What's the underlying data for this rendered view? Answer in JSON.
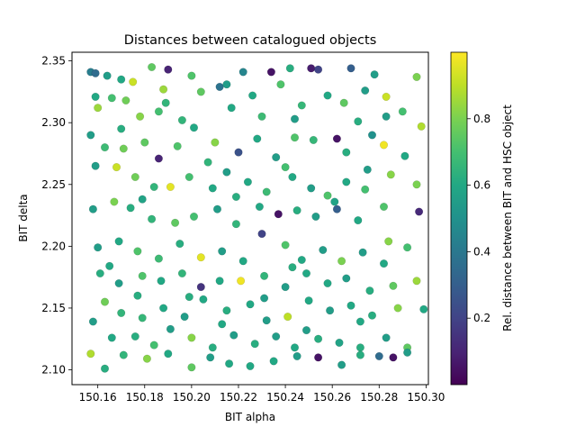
{
  "chart_data": {
    "type": "scatter",
    "title": "Distances between catalogued objects",
    "xlabel": "BIT alpha",
    "ylabel": "BIT delta",
    "xlim": [
      150.149,
      150.301
    ],
    "ylim": [
      2.088,
      2.357
    ],
    "xticks": [
      150.16,
      150.18,
      150.2,
      150.22,
      150.24,
      150.26,
      150.28,
      150.3
    ],
    "xtick_labels": [
      "150.16",
      "150.18",
      "150.20",
      "150.22",
      "150.24",
      "150.26",
      "150.28",
      "150.30"
    ],
    "yticks": [
      2.1,
      2.15,
      2.2,
      2.25,
      2.3,
      2.35
    ],
    "ytick_labels": [
      "2.10",
      "2.15",
      "2.20",
      "2.25",
      "2.30",
      "2.35"
    ],
    "grid": false,
    "colorbar": {
      "label": "Rel. distance between BIT and HSC object",
      "colormap": "viridis",
      "range": [
        0.0,
        1.0
      ],
      "ticks": [
        0.2,
        0.4,
        0.6,
        0.8
      ],
      "tick_labels": [
        "0.2",
        "0.4",
        "0.6",
        "0.8"
      ]
    },
    "points": [
      [
        150.157,
        2.341,
        0.42
      ],
      [
        150.159,
        2.34,
        0.35
      ],
      [
        150.164,
        2.338,
        0.55
      ],
      [
        150.17,
        2.335,
        0.6
      ],
      [
        150.175,
        2.333,
        0.92
      ],
      [
        150.183,
        2.345,
        0.75
      ],
      [
        150.19,
        2.343,
        0.1
      ],
      [
        150.188,
        2.327,
        0.85
      ],
      [
        150.2,
        2.338,
        0.72
      ],
      [
        150.212,
        2.329,
        0.38
      ],
      [
        150.222,
        2.341,
        0.45
      ],
      [
        150.234,
        2.341,
        0.05
      ],
      [
        150.242,
        2.344,
        0.62
      ],
      [
        150.251,
        2.344,
        0.08
      ],
      [
        150.254,
        2.343,
        0.2
      ],
      [
        150.268,
        2.344,
        0.3
      ],
      [
        150.278,
        2.339,
        0.55
      ],
      [
        150.296,
        2.337,
        0.8
      ],
      [
        150.16,
        2.312,
        0.85
      ],
      [
        150.166,
        2.32,
        0.7
      ],
      [
        150.172,
        2.318,
        0.78
      ],
      [
        150.178,
        2.305,
        0.82
      ],
      [
        150.186,
        2.309,
        0.7
      ],
      [
        150.196,
        2.302,
        0.65
      ],
      [
        150.204,
        2.325,
        0.75
      ],
      [
        150.215,
        2.331,
        0.55
      ],
      [
        150.226,
        2.322,
        0.6
      ],
      [
        150.23,
        2.305,
        0.68
      ],
      [
        150.238,
        2.331,
        0.72
      ],
      [
        150.247,
        2.314,
        0.66
      ],
      [
        150.258,
        2.322,
        0.6
      ],
      [
        150.265,
        2.316,
        0.75
      ],
      [
        150.274,
        2.326,
        0.55
      ],
      [
        150.283,
        2.321,
        0.92
      ],
      [
        150.29,
        2.309,
        0.7
      ],
      [
        150.298,
        2.297,
        0.88
      ],
      [
        150.157,
        2.29,
        0.55
      ],
      [
        150.163,
        2.28,
        0.68
      ],
      [
        150.171,
        2.279,
        0.78
      ],
      [
        150.18,
        2.284,
        0.75
      ],
      [
        150.186,
        2.271,
        0.1
      ],
      [
        150.194,
        2.281,
        0.72
      ],
      [
        150.201,
        2.296,
        0.6
      ],
      [
        150.21,
        2.284,
        0.82
      ],
      [
        150.22,
        2.276,
        0.25
      ],
      [
        150.228,
        2.287,
        0.6
      ],
      [
        150.236,
        2.272,
        0.55
      ],
      [
        150.244,
        2.288,
        0.72
      ],
      [
        150.252,
        2.286,
        0.66
      ],
      [
        150.262,
        2.287,
        0.05
      ],
      [
        150.266,
        2.276,
        0.62
      ],
      [
        150.277,
        2.29,
        0.5
      ],
      [
        150.282,
        2.282,
        0.98
      ],
      [
        150.291,
        2.273,
        0.6
      ],
      [
        150.159,
        2.265,
        0.55
      ],
      [
        150.168,
        2.264,
        0.92
      ],
      [
        150.176,
        2.256,
        0.78
      ],
      [
        150.184,
        2.248,
        0.65
      ],
      [
        150.191,
        2.248,
        0.96
      ],
      [
        150.199,
        2.256,
        0.7
      ],
      [
        150.209,
        2.247,
        0.6
      ],
      [
        150.215,
        2.26,
        0.55
      ],
      [
        150.224,
        2.252,
        0.6
      ],
      [
        150.232,
        2.244,
        0.68
      ],
      [
        150.243,
        2.256,
        0.6
      ],
      [
        150.251,
        2.247,
        0.55
      ],
      [
        150.258,
        2.241,
        0.72
      ],
      [
        150.266,
        2.252,
        0.6
      ],
      [
        150.274,
        2.246,
        0.7
      ],
      [
        150.285,
        2.258,
        0.82
      ],
      [
        150.296,
        2.25,
        0.8
      ],
      [
        150.158,
        2.23,
        0.55
      ],
      [
        150.167,
        2.236,
        0.8
      ],
      [
        150.174,
        2.231,
        0.62
      ],
      [
        150.183,
        2.222,
        0.65
      ],
      [
        150.193,
        2.219,
        0.75
      ],
      [
        150.201,
        2.224,
        0.7
      ],
      [
        150.211,
        2.23,
        0.55
      ],
      [
        150.219,
        2.218,
        0.65
      ],
      [
        150.229,
        2.232,
        0.6
      ],
      [
        150.237,
        2.226,
        0.05
      ],
      [
        150.245,
        2.229,
        0.62
      ],
      [
        150.253,
        2.224,
        0.55
      ],
      [
        150.262,
        2.23,
        0.3
      ],
      [
        150.271,
        2.221,
        0.6
      ],
      [
        150.282,
        2.232,
        0.72
      ],
      [
        150.297,
        2.228,
        0.12
      ],
      [
        150.16,
        2.199,
        0.55
      ],
      [
        150.169,
        2.204,
        0.6
      ],
      [
        150.177,
        2.196,
        0.72
      ],
      [
        150.186,
        2.19,
        0.68
      ],
      [
        150.195,
        2.202,
        0.62
      ],
      [
        150.204,
        2.191,
        0.96
      ],
      [
        150.213,
        2.196,
        0.55
      ],
      [
        150.222,
        2.188,
        0.6
      ],
      [
        150.23,
        2.21,
        0.2
      ],
      [
        150.24,
        2.201,
        0.72
      ],
      [
        150.247,
        2.189,
        0.6
      ],
      [
        150.256,
        2.197,
        0.55
      ],
      [
        150.264,
        2.188,
        0.8
      ],
      [
        150.273,
        2.195,
        0.55
      ],
      [
        150.284,
        2.204,
        0.82
      ],
      [
        150.292,
        2.199,
        0.7
      ],
      [
        150.161,
        2.178,
        0.62
      ],
      [
        150.169,
        2.17,
        0.55
      ],
      [
        150.179,
        2.176,
        0.72
      ],
      [
        150.187,
        2.172,
        0.6
      ],
      [
        150.196,
        2.178,
        0.65
      ],
      [
        150.204,
        2.167,
        0.15
      ],
      [
        150.212,
        2.172,
        0.6
      ],
      [
        150.221,
        2.172,
        0.98
      ],
      [
        150.231,
        2.176,
        0.65
      ],
      [
        150.24,
        2.167,
        0.55
      ],
      [
        150.249,
        2.178,
        0.6
      ],
      [
        150.258,
        2.17,
        0.6
      ],
      [
        150.266,
        2.174,
        0.55
      ],
      [
        150.276,
        2.164,
        0.62
      ],
      [
        150.286,
        2.168,
        0.75
      ],
      [
        150.296,
        2.172,
        0.85
      ],
      [
        150.163,
        2.155,
        0.78
      ],
      [
        150.17,
        2.146,
        0.65
      ],
      [
        150.179,
        2.142,
        0.66
      ],
      [
        150.188,
        2.15,
        0.6
      ],
      [
        150.197,
        2.143,
        0.55
      ],
      [
        150.205,
        2.157,
        0.6
      ],
      [
        150.215,
        2.148,
        0.62
      ],
      [
        150.225,
        2.153,
        0.6
      ],
      [
        150.232,
        2.14,
        0.55
      ],
      [
        150.241,
        2.143,
        0.9
      ],
      [
        150.25,
        2.156,
        0.6
      ],
      [
        150.259,
        2.148,
        0.55
      ],
      [
        150.268,
        2.152,
        0.6
      ],
      [
        150.277,
        2.144,
        0.62
      ],
      [
        150.288,
        2.15,
        0.82
      ],
      [
        150.299,
        2.149,
        0.6
      ],
      [
        150.158,
        2.139,
        0.55
      ],
      [
        150.166,
        2.126,
        0.6
      ],
      [
        150.176,
        2.127,
        0.62
      ],
      [
        150.184,
        2.12,
        0.7
      ],
      [
        150.191,
        2.133,
        0.55
      ],
      [
        150.2,
        2.126,
        0.82
      ],
      [
        150.209,
        2.118,
        0.62
      ],
      [
        150.218,
        2.128,
        0.55
      ],
      [
        150.227,
        2.121,
        0.62
      ],
      [
        150.236,
        2.127,
        0.55
      ],
      [
        150.244,
        2.118,
        0.6
      ],
      [
        150.254,
        2.125,
        0.62
      ],
      [
        150.263,
        2.122,
        0.58
      ],
      [
        150.272,
        2.118,
        0.62
      ],
      [
        150.283,
        2.126,
        0.55
      ],
      [
        150.292,
        2.118,
        0.75
      ],
      [
        150.157,
        2.113,
        0.88
      ],
      [
        150.163,
        2.101,
        0.62
      ],
      [
        150.171,
        2.112,
        0.65
      ],
      [
        150.181,
        2.109,
        0.82
      ],
      [
        150.19,
        2.113,
        0.6
      ],
      [
        150.2,
        2.102,
        0.75
      ],
      [
        150.208,
        2.11,
        0.55
      ],
      [
        150.216,
        2.105,
        0.6
      ],
      [
        150.225,
        2.103,
        0.6
      ],
      [
        150.235,
        2.107,
        0.6
      ],
      [
        150.245,
        2.111,
        0.55
      ],
      [
        150.254,
        2.11,
        0.05
      ],
      [
        150.264,
        2.104,
        0.55
      ],
      [
        150.272,
        2.112,
        0.62
      ],
      [
        150.28,
        2.111,
        0.35
      ],
      [
        150.286,
        2.11,
        0.05
      ],
      [
        150.292,
        2.114,
        0.55
      ],
      [
        150.159,
        2.321,
        0.6
      ],
      [
        150.189,
        2.316,
        0.65
      ],
      [
        150.217,
        2.312,
        0.6
      ],
      [
        150.244,
        2.303,
        0.55
      ],
      [
        150.271,
        2.301,
        0.62
      ],
      [
        150.283,
        2.305,
        0.55
      ],
      [
        150.17,
        2.295,
        0.62
      ],
      [
        150.207,
        2.268,
        0.65
      ],
      [
        150.24,
        2.264,
        0.7
      ],
      [
        150.275,
        2.262,
        0.55
      ],
      [
        150.179,
        2.238,
        0.58
      ],
      [
        150.219,
        2.24,
        0.62
      ],
      [
        150.261,
        2.236,
        0.58
      ],
      [
        150.165,
        2.184,
        0.6
      ],
      [
        150.243,
        2.183,
        0.62
      ],
      [
        150.282,
        2.186,
        0.6
      ],
      [
        150.199,
        2.159,
        0.62
      ],
      [
        150.231,
        2.158,
        0.55
      ],
      [
        150.272,
        2.139,
        0.6
      ],
      [
        150.213,
        2.137,
        0.6
      ],
      [
        150.249,
        2.132,
        0.55
      ],
      [
        150.177,
        2.16,
        0.62
      ]
    ]
  }
}
